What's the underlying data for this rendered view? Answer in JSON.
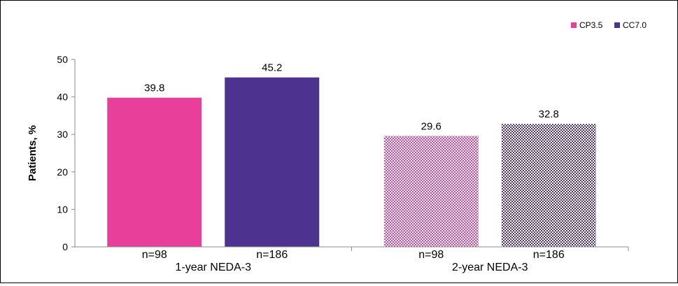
{
  "chart_data": {
    "type": "bar",
    "title": "",
    "xlabel": "",
    "ylabel": "Patients, %",
    "ylim": [
      0,
      50
    ],
    "yticks": [
      0,
      10,
      20,
      30,
      40,
      50
    ],
    "grid": false,
    "legend_position": "top-right",
    "groups": [
      {
        "label": "1-year NEDA-3",
        "bars": [
          {
            "series": "CP3.5",
            "value": 39.8,
            "value_label": "39.8",
            "n_label": "n=98",
            "pattern": "solid"
          },
          {
            "series": "CC7.0",
            "value": 45.2,
            "value_label": "45.2",
            "n_label": "n=186",
            "pattern": "solid"
          }
        ]
      },
      {
        "label": "2-year NEDA-3",
        "bars": [
          {
            "series": "CP3.5",
            "value": 29.6,
            "value_label": "29.6",
            "n_label": "n=98",
            "pattern": "checkered"
          },
          {
            "series": "CC7.0",
            "value": 32.8,
            "value_label": "32.8",
            "n_label": "n=186",
            "pattern": "checkered"
          }
        ]
      }
    ],
    "series": [
      {
        "name": "CP3.5",
        "color": "#E8409A"
      },
      {
        "name": "CC7.0",
        "color": "#4E3290"
      }
    ]
  }
}
